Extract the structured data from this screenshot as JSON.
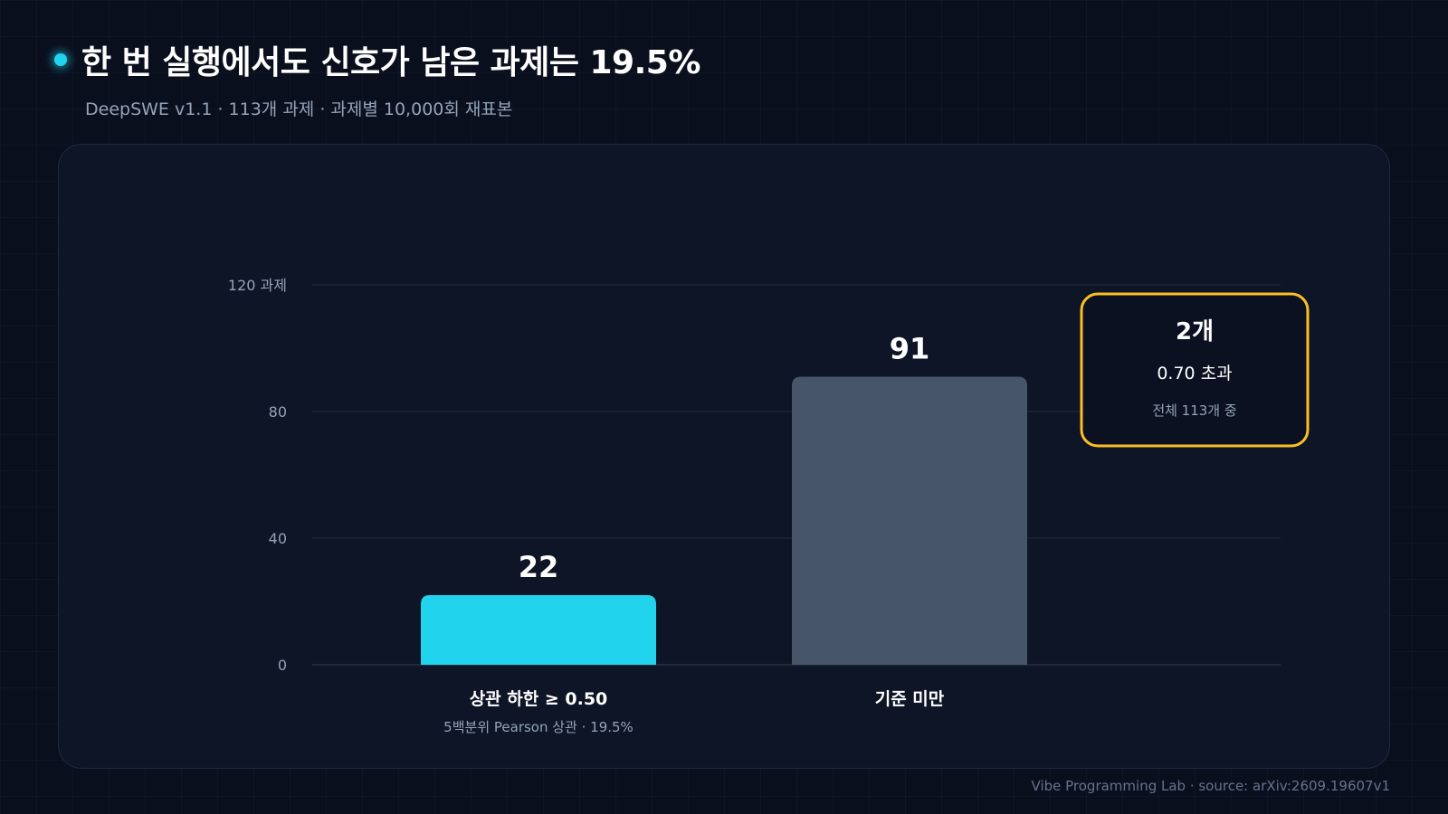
{
  "header": {
    "title": "한 번 실행에서도 신호가 남은 과제는 19.5%",
    "subtitle": "DeepSWE v1.1 · 113개 과제 · 과제별 10,000회 재표본"
  },
  "footer": {
    "credit": "Vibe Programming Lab · source: arXiv:2609.19607v1"
  },
  "colors": {
    "accent": "#22d3ee",
    "bar_secondary": "#475569",
    "callout_border": "#fbbf24",
    "background": "#0a0f1e",
    "card": "#0e1526"
  },
  "chart_data": {
    "type": "bar",
    "title": "",
    "xlabel": "",
    "ylabel": "",
    "ylim": [
      0,
      120
    ],
    "y_ticks": [
      {
        "value": 0,
        "label": "0"
      },
      {
        "value": 40,
        "label": "40"
      },
      {
        "value": 80,
        "label": "80"
      },
      {
        "value": 120,
        "label": "120 과제"
      }
    ],
    "categories": [
      "상관 하한 ≥ 0.50",
      "기준 미만"
    ],
    "category_sublabels": [
      "5백분위 Pearson 상관 · 19.5%",
      ""
    ],
    "values": [
      22,
      91
    ],
    "value_labels": [
      "22",
      "91"
    ],
    "bar_colors": [
      "#22d3ee",
      "#475569"
    ],
    "grid": true,
    "callout": {
      "value": "2개",
      "label": "0.70 초과",
      "note": "전체 113개 중"
    }
  }
}
